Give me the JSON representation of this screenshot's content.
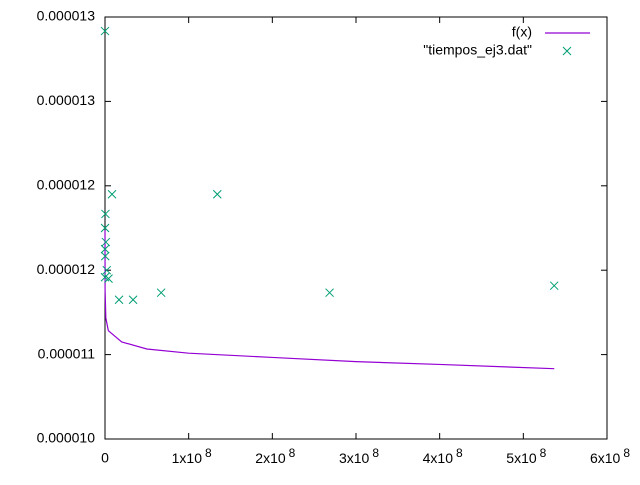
{
  "chart_data": {
    "type": "line_scatter",
    "xlim": [
      0,
      600000000
    ],
    "xticks": [
      0,
      {
        "value": 100000000,
        "label": "1x10",
        "exponent": "8"
      },
      {
        "value": 200000000,
        "label": "2x10",
        "exponent": "8"
      },
      {
        "value": 300000000,
        "label": "3x10",
        "exponent": "8"
      },
      {
        "value": 400000000,
        "label": "4x10",
        "exponent": "8"
      },
      {
        "value": 500000000,
        "label": "5x10",
        "exponent": "8"
      },
      {
        "value": 600000000,
        "label": "6x10",
        "exponent": "8"
      }
    ],
    "ylim": [
      1.04e-05,
      1.34e-05
    ],
    "yticks": [
      {
        "value": 1.04e-05,
        "label": "0.000010"
      },
      {
        "value": 1.1e-05,
        "label": "0.000011"
      },
      {
        "value": 1.16e-05,
        "label": "0.000012"
      },
      {
        "value": 1.22e-05,
        "label": "0.000012"
      },
      {
        "value": 1.28e-05,
        "label": "0.000013"
      },
      {
        "value": 1.34e-05,
        "label": "0.000013"
      }
    ],
    "legend": "top-right",
    "series": [
      {
        "name": "f(x)",
        "kind": "line",
        "color": "#9400d3",
        "x": [
          10000,
          100000,
          1000000,
          4000000,
          10000000,
          20000000,
          50000000,
          100000000,
          200000000,
          300000000,
          400000000,
          537000000
        ],
        "values": [
          1.1885e-05,
          1.146e-05,
          1.126e-05,
          1.117e-05,
          1.114e-05,
          1.109e-05,
          1.104e-05,
          1.101e-05,
          1.098e-05,
          1.095e-05,
          1.093e-05,
          1.09e-05
        ]
      },
      {
        "name": "\"tiempos_ej3.dat\"",
        "kind": "scatter",
        "color": "#009e73",
        "x": [
          1024,
          4096,
          16384,
          65536,
          262144,
          524288,
          1048576,
          2097152,
          4194304,
          8388608,
          16777216,
          33554432,
          67108864,
          134217728,
          268435456,
          536870912
        ],
        "values": [
          1.33e-05,
          1.155e-05,
          1.175e-05,
          1.19e-05,
          1.17e-05,
          1.2e-05,
          1.18e-05,
          1.16e-05,
          1.154e-05,
          1.214e-05,
          1.139e-05,
          1.139e-05,
          1.144e-05,
          1.214e-05,
          1.144e-05,
          1.149e-05
        ]
      }
    ]
  }
}
